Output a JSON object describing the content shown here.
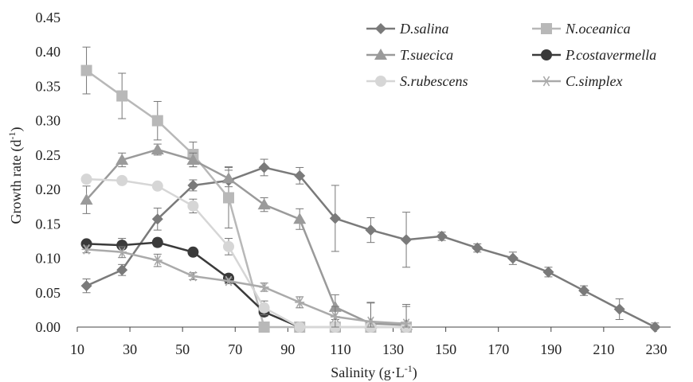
{
  "chart_data": {
    "type": "line",
    "title": "",
    "xlabel": "Salinity (g·L",
    "xlabel_sup": "-1",
    "xlabel_end": ")",
    "ylabel": "Growth rate (d",
    "ylabel_sup": "-1",
    "ylabel_end": ")",
    "xlim": [
      10,
      240
    ],
    "ylim": [
      0,
      0.45
    ],
    "x_ticks": [
      10,
      30,
      50,
      70,
      90,
      110,
      130,
      150,
      170,
      190,
      210,
      230
    ],
    "x_tick_labels": [
      "10",
      "30",
      "50",
      "70",
      "90",
      "110",
      "130",
      "150",
      "170",
      "190",
      "210",
      "230"
    ],
    "y_ticks": [
      0,
      0.05,
      0.1,
      0.15,
      0.2,
      0.25,
      0.3,
      0.35,
      0.4,
      0.45
    ],
    "y_tick_labels": [
      "0.00",
      "0.05",
      "0.10",
      "0.15",
      "0.20",
      "0.25",
      "0.30",
      "0.35",
      "0.40",
      "0.45"
    ],
    "grid": false,
    "legend_position": "top-right",
    "series": [
      {
        "name": "D.salina",
        "color": "#7a7a7a",
        "marker": "diamond",
        "x": [
          13.5,
          27,
          40.5,
          54,
          67.5,
          81,
          94.5,
          108,
          121.5,
          135,
          148.5,
          162,
          175.5,
          189,
          202.5,
          216,
          229.5
        ],
        "y": [
          0.06,
          0.083,
          0.157,
          0.206,
          0.213,
          0.232,
          0.22,
          0.158,
          0.141,
          0.127,
          0.132,
          0.115,
          0.1,
          0.08,
          0.053,
          0.026,
          0.0
        ],
        "err": [
          0.01,
          0.008,
          0.016,
          0.008,
          0.02,
          0.012,
          0.012,
          0.048,
          0.018,
          0.04,
          0.006,
          0.006,
          0.009,
          0.007,
          0.007,
          0.015,
          0.006
        ]
      },
      {
        "name": "N.oceanica",
        "color": "#b8b8b8",
        "marker": "square",
        "x": [
          13.5,
          27,
          40.5,
          54,
          67.5,
          81,
          94.5,
          108,
          121.5,
          135
        ],
        "y": [
          0.373,
          0.336,
          0.3,
          0.251,
          0.188,
          0.0,
          0.0,
          0.0,
          0.0,
          0.0
        ],
        "err": [
          0.034,
          0.033,
          0.028,
          0.018,
          0.044,
          0.0,
          0.0,
          0.0,
          0.0,
          0.0
        ]
      },
      {
        "name": "T.suecica",
        "color": "#9a9a9a",
        "marker": "triangle",
        "x": [
          13.5,
          27,
          40.5,
          54,
          67.5,
          81,
          94.5,
          108,
          121.5,
          135
        ],
        "y": [
          0.185,
          0.243,
          0.258,
          0.243,
          0.216,
          0.178,
          0.157,
          0.029,
          0.005,
          0.003
        ],
        "err": [
          0.02,
          0.01,
          0.008,
          0.01,
          0.012,
          0.01,
          0.015,
          0.018,
          0.03,
          0.03
        ]
      },
      {
        "name": "P.costavermella",
        "color": "#3a3a3a",
        "marker": "circle",
        "x": [
          13.5,
          27,
          40.5,
          54,
          67.5,
          81,
          94.5
        ],
        "y": [
          0.121,
          0.119,
          0.123,
          0.109,
          0.071,
          0.022,
          0.0
        ],
        "err": [
          0.005,
          0.01,
          0.006,
          0.004,
          0.006,
          0.006,
          0.003
        ]
      },
      {
        "name": "S.rubescens",
        "color": "#d6d6d6",
        "marker": "circle",
        "x": [
          13.5,
          27,
          40.5,
          54,
          67.5,
          81,
          94.5,
          108,
          121.5,
          135
        ],
        "y": [
          0.215,
          0.213,
          0.205,
          0.176,
          0.117,
          0.028,
          0.0,
          0.0,
          0.0,
          0.0
        ],
        "err": [
          0.004,
          0.005,
          0.004,
          0.01,
          0.012,
          0.01,
          0.0,
          0.0,
          0.0,
          0.0
        ]
      },
      {
        "name": "C.simplex",
        "color": "#aaaaaa",
        "marker": "asterisk",
        "x": [
          13.5,
          27,
          40.5,
          54,
          67.5,
          81,
          94.5,
          108,
          121.5,
          135
        ],
        "y": [
          0.113,
          0.109,
          0.097,
          0.074,
          0.067,
          0.058,
          0.036,
          0.015,
          0.008,
          0.005
        ],
        "err": [
          0.005,
          0.008,
          0.009,
          0.005,
          0.004,
          0.006,
          0.008,
          0.015,
          0.028,
          0.025
        ]
      }
    ]
  }
}
